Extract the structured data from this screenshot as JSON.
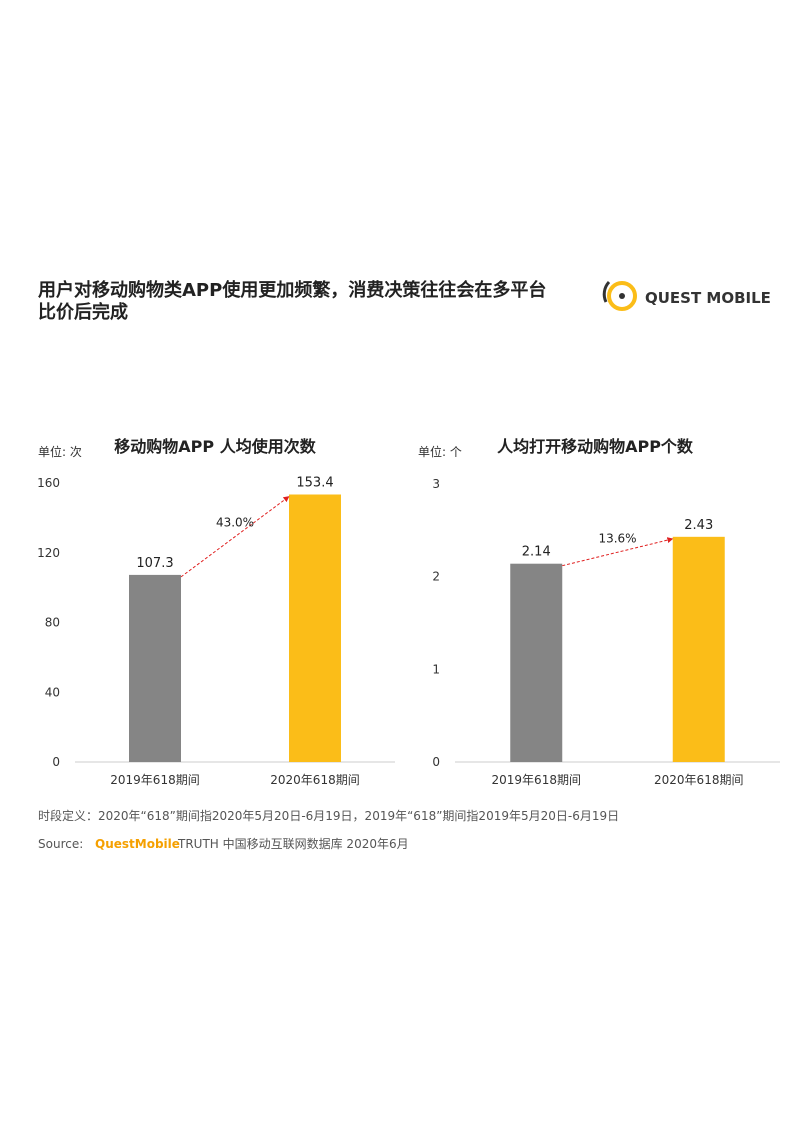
{
  "header": {
    "title_lines": [
      "用户对移动购物类APP使用更加频繁，消费决策往往会在多平台",
      "比价后完成"
    ],
    "logo": "QUEST MOBILE"
  },
  "chart_data": [
    {
      "type": "bar",
      "title": "移动购物APP 人均使用次数",
      "unit": "单位: 次",
      "categories": [
        "2019年618期间",
        "2020年618期间"
      ],
      "values": [
        107.3,
        153.4
      ],
      "colors": [
        "#858585",
        "#fbbd18"
      ],
      "ylim": [
        0,
        160
      ],
      "yticks": [
        0,
        40,
        80,
        120,
        160
      ],
      "growth": "43.0%"
    },
    {
      "type": "bar",
      "title": "人均打开移动购物APP个数",
      "unit": "单位: 个",
      "categories": [
        "2019年618期间",
        "2020年618期间"
      ],
      "values": [
        2.14,
        2.43
      ],
      "colors": [
        "#858585",
        "#fbbd18"
      ],
      "ylim": [
        0,
        3
      ],
      "yticks": [
        0,
        1,
        2,
        3
      ],
      "growth": "13.6%"
    }
  ],
  "footer": {
    "definition": "时段定义：2020年“618”期间指2020年5月20日-6月19日，2019年“618”期间指2019年5月20日-6月19日",
    "source_label": "Source:",
    "source_brand": "QuestMobile",
    "source_text": "TRUTH 中国移动互联网数据库 2020年6月"
  }
}
